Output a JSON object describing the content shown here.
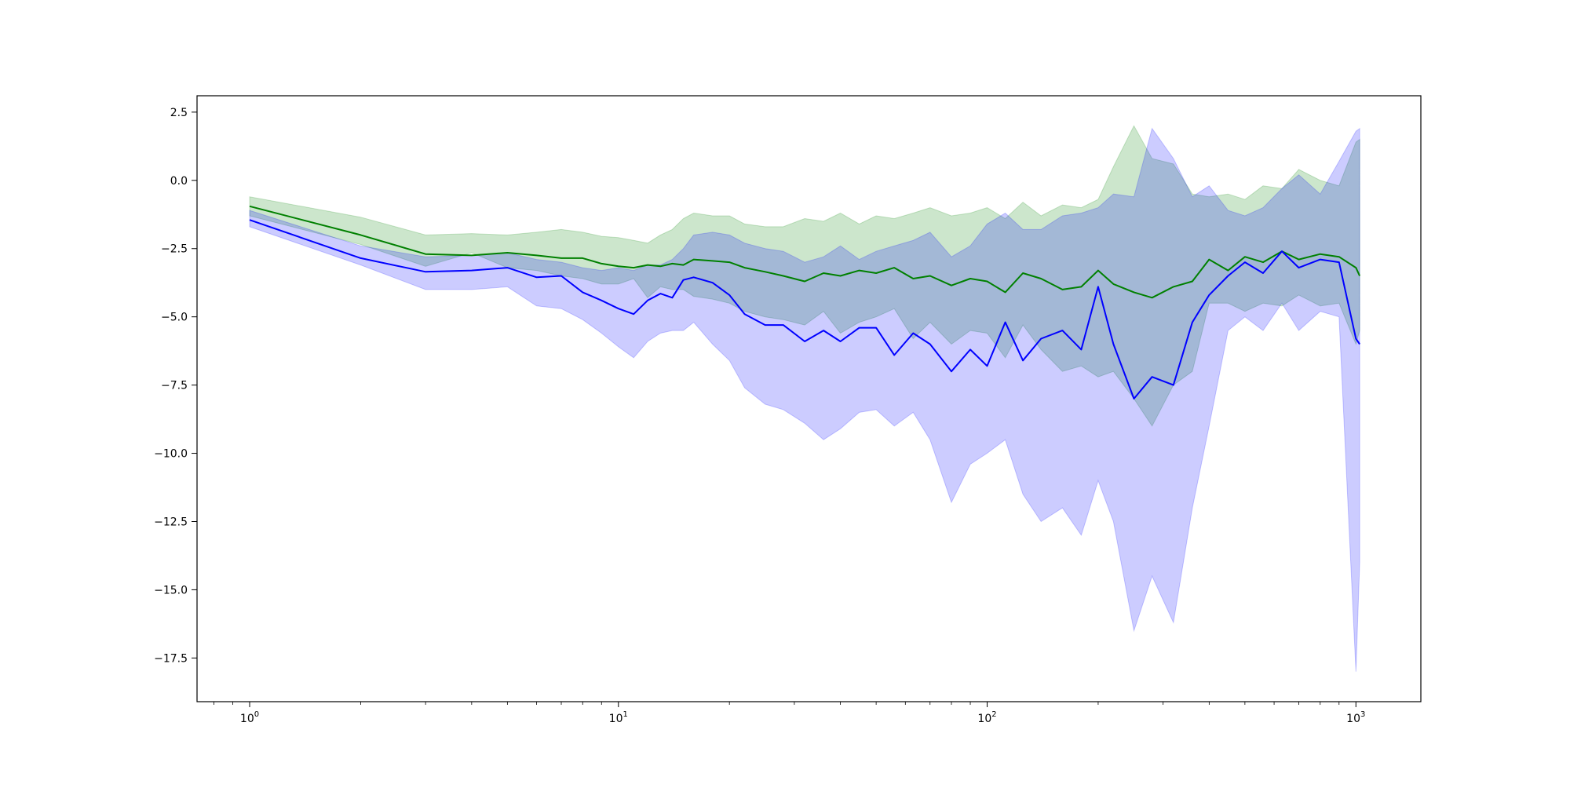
{
  "chart_data": {
    "type": "line",
    "title": "",
    "xlabel": "",
    "ylabel": "",
    "xscale": "log",
    "xlim": [
      0.72,
      1500
    ],
    "ylim": [
      -19.1,
      3.1
    ],
    "grid": false,
    "legend": "none",
    "xticks": [
      {
        "value": 1,
        "label": "10",
        "exp": "0"
      },
      {
        "value": 10,
        "label": "10",
        "exp": "1"
      },
      {
        "value": 100,
        "label": "10",
        "exp": "2"
      },
      {
        "value": 1000,
        "label": "10",
        "exp": "3"
      }
    ],
    "yticks": [
      {
        "value": 2.5,
        "label": "2.5"
      },
      {
        "value": 0.0,
        "label": "0.0"
      },
      {
        "value": -2.5,
        "label": "−2.5"
      },
      {
        "value": -5.0,
        "label": "−5.0"
      },
      {
        "value": -7.5,
        "label": "−7.5"
      },
      {
        "value": -10.0,
        "label": "−10.0"
      },
      {
        "value": -12.5,
        "label": "−12.5"
      },
      {
        "value": -15.0,
        "label": "−15.0"
      },
      {
        "value": -17.5,
        "label": "−17.5"
      }
    ],
    "series": [
      {
        "color": "#008000",
        "band_color": "#008000",
        "band_opacity": 0.2,
        "x": [
          1,
          2,
          3,
          4,
          5,
          6,
          7,
          8,
          9,
          10,
          11,
          12,
          13,
          14,
          15,
          16,
          18,
          20,
          22,
          25,
          28,
          32,
          36,
          40,
          45,
          50,
          56,
          63,
          70,
          80,
          90,
          100,
          112,
          125,
          140,
          160,
          180,
          200,
          220,
          250,
          280,
          320,
          360,
          400,
          450,
          500,
          560,
          630,
          700,
          800,
          900,
          1000,
          1024
        ],
        "y": [
          -0.95,
          -2.0,
          -2.7,
          -2.75,
          -2.65,
          -2.75,
          -2.85,
          -2.85,
          -3.05,
          -3.15,
          -3.2,
          -3.1,
          -3.15,
          -3.05,
          -3.1,
          -2.9,
          -2.95,
          -3.0,
          -3.2,
          -3.35,
          -3.5,
          -3.7,
          -3.4,
          -3.5,
          -3.3,
          -3.4,
          -3.2,
          -3.6,
          -3.5,
          -3.85,
          -3.6,
          -3.7,
          -4.1,
          -3.4,
          -3.6,
          -4.0,
          -3.9,
          -3.3,
          -3.8,
          -4.1,
          -4.3,
          -3.9,
          -3.7,
          -2.9,
          -3.3,
          -2.8,
          -3.0,
          -2.6,
          -2.9,
          -2.7,
          -2.8,
          -3.2,
          -3.5
        ],
        "lower": [
          -1.3,
          -2.35,
          -3.15,
          -2.65,
          -3.2,
          -3.3,
          -3.5,
          -3.6,
          -3.8,
          -3.8,
          -3.6,
          -4.3,
          -3.9,
          -4.0,
          -4.0,
          -4.25,
          -4.35,
          -4.5,
          -4.8,
          -5.0,
          -5.1,
          -5.3,
          -4.8,
          -5.6,
          -5.2,
          -5.0,
          -4.7,
          -5.8,
          -5.2,
          -6.0,
          -5.5,
          -5.6,
          -6.5,
          -5.3,
          -6.2,
          -7.0,
          -6.8,
          -7.2,
          -7.0,
          -8.0,
          -9.0,
          -7.5,
          -7.0,
          -4.5,
          -4.5,
          -4.8,
          -4.5,
          -4.6,
          -4.2,
          -4.6,
          -4.5,
          -6.0,
          -5.5
        ],
        "upper": [
          -0.6,
          -1.35,
          -2.0,
          -1.95,
          -2.0,
          -1.9,
          -1.8,
          -1.9,
          -2.05,
          -2.1,
          -2.2,
          -2.3,
          -2.0,
          -1.8,
          -1.4,
          -1.2,
          -1.3,
          -1.3,
          -1.6,
          -1.7,
          -1.7,
          -1.4,
          -1.5,
          -1.2,
          -1.6,
          -1.3,
          -1.4,
          -1.2,
          -1.0,
          -1.3,
          -1.2,
          -1.0,
          -1.4,
          -0.8,
          -1.3,
          -0.9,
          -1.0,
          -0.7,
          0.5,
          2.0,
          0.8,
          0.6,
          -0.5,
          -0.6,
          -0.5,
          -0.7,
          -0.2,
          -0.3,
          0.4,
          0.0,
          -0.2,
          1.4,
          1.5
        ]
      },
      {
        "color": "#0000ff",
        "band_color": "#0000ff",
        "band_opacity": 0.2,
        "x": [
          1,
          2,
          3,
          4,
          5,
          6,
          7,
          8,
          9,
          10,
          11,
          12,
          13,
          14,
          15,
          16,
          18,
          20,
          22,
          25,
          28,
          32,
          36,
          40,
          45,
          50,
          56,
          63,
          70,
          80,
          90,
          100,
          112,
          125,
          140,
          160,
          180,
          200,
          220,
          250,
          280,
          320,
          360,
          400,
          450,
          500,
          560,
          630,
          700,
          800,
          900,
          1000,
          1024
        ],
        "y": [
          -1.45,
          -2.85,
          -3.35,
          -3.3,
          -3.2,
          -3.55,
          -3.5,
          -4.1,
          -4.4,
          -4.7,
          -4.9,
          -4.4,
          -4.15,
          -4.3,
          -3.65,
          -3.55,
          -3.75,
          -4.2,
          -4.9,
          -5.3,
          -5.3,
          -5.9,
          -5.5,
          -5.9,
          -5.4,
          -5.4,
          -6.4,
          -5.6,
          -6.0,
          -7.0,
          -6.2,
          -6.8,
          -5.2,
          -6.6,
          -5.8,
          -5.5,
          -6.2,
          -3.9,
          -6.0,
          -8.0,
          -7.2,
          -7.5,
          -5.2,
          -4.2,
          -3.5,
          -3.0,
          -3.4,
          -2.6,
          -3.2,
          -2.9,
          -3.0,
          -5.8,
          -6.0
        ],
        "lower": [
          -1.7,
          -3.1,
          -4.0,
          -4.0,
          -3.9,
          -4.6,
          -4.7,
          -5.1,
          -5.6,
          -6.1,
          -6.5,
          -5.9,
          -5.6,
          -5.5,
          -5.5,
          -5.2,
          -6.0,
          -6.6,
          -7.6,
          -8.2,
          -8.4,
          -8.9,
          -9.5,
          -9.1,
          -8.5,
          -8.4,
          -9.0,
          -8.5,
          -9.5,
          -11.8,
          -10.4,
          -10.0,
          -9.5,
          -11.5,
          -12.5,
          -12.0,
          -13.0,
          -11.0,
          -12.5,
          -16.5,
          -14.5,
          -16.2,
          -12.0,
          -9.0,
          -5.5,
          -5.0,
          -5.5,
          -4.5,
          -5.5,
          -4.8,
          -5.0,
          -18.0,
          -14.0
        ],
        "upper": [
          -1.1,
          -2.4,
          -2.8,
          -2.75,
          -2.65,
          -2.9,
          -3.0,
          -3.2,
          -3.3,
          -3.2,
          -3.3,
          -3.1,
          -3.1,
          -2.9,
          -2.5,
          -2.0,
          -1.9,
          -2.0,
          -2.3,
          -2.5,
          -2.6,
          -3.0,
          -2.8,
          -2.4,
          -2.9,
          -2.6,
          -2.4,
          -2.2,
          -1.9,
          -2.8,
          -2.4,
          -1.6,
          -1.2,
          -1.8,
          -1.8,
          -1.3,
          -1.2,
          -1.0,
          -0.5,
          -0.6,
          1.9,
          0.8,
          -0.6,
          -0.2,
          -1.1,
          -1.3,
          -1.0,
          -0.3,
          0.2,
          -0.5,
          0.7,
          1.8,
          1.9
        ]
      }
    ]
  }
}
